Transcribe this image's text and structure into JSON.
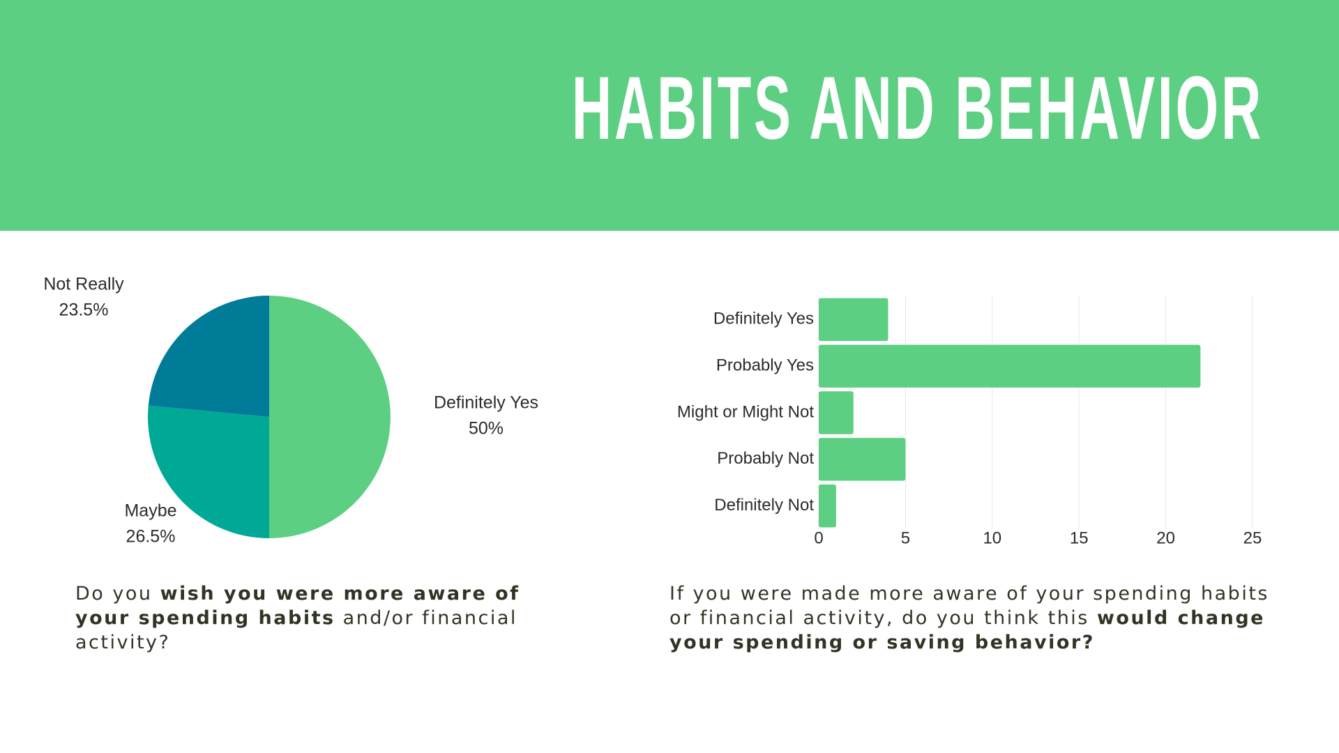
{
  "header": {
    "title": "HABITS AND BEHAVIOR"
  },
  "chart_data": [
    {
      "type": "pie",
      "categories": [
        "Definitely Yes",
        "Maybe",
        "Not Really"
      ],
      "values": [
        50,
        26.5,
        23.5
      ],
      "value_labels": [
        "50%",
        "26.5%",
        "23.5%"
      ],
      "colors": [
        "#5ccf83",
        "#00a896",
        "#007c99"
      ]
    },
    {
      "type": "hbar",
      "categories": [
        "Definitely Yes",
        "Probably Yes",
        "Might or Might Not",
        "Probably Not",
        "Definitely Not"
      ],
      "values": [
        4,
        22,
        2,
        5,
        1
      ],
      "color": "#5ccf83",
      "xlim": [
        0,
        25
      ],
      "xticks": [
        0,
        5,
        10,
        15,
        20,
        25
      ],
      "grid": true
    }
  ],
  "captions": [
    {
      "parts": [
        {
          "text": "Do you ",
          "bold": false
        },
        {
          "text": "wish you were more aware of your spending habits",
          "bold": true
        },
        {
          "text": " and/or financial activity?",
          "bold": false
        }
      ]
    },
    {
      "parts": [
        {
          "text": "If you were made more aware of your spending habits or financial activity, do you think this ",
          "bold": false
        },
        {
          "text": "would change your spending or saving behavior?",
          "bold": true
        }
      ]
    }
  ]
}
